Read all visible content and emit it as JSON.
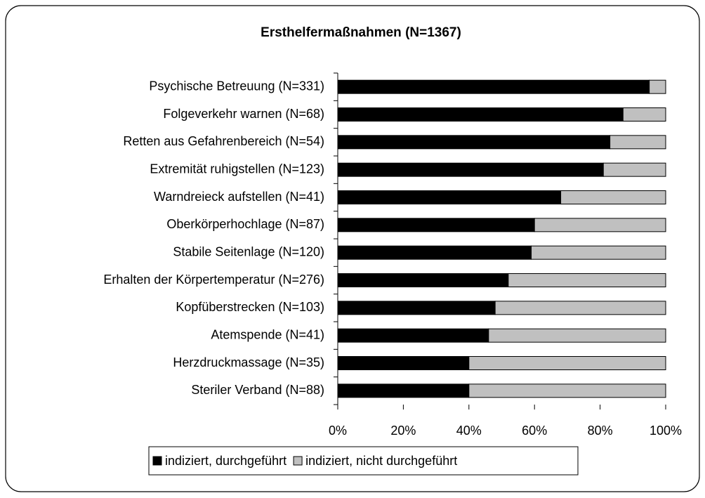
{
  "chart_data": {
    "type": "stacked-bar-horizontal",
    "title": "Ersthelfermaßnahmen (N=1367)",
    "categories": [
      "Psychische Betreuung (N=331)",
      "Folgeverkehr warnen (N=68)",
      "Retten aus Gefahrenbereich (N=54)",
      "Extremität ruhigstellen (N=123)",
      "Warndreieck aufstellen (N=41)",
      "Oberkörperhochlage (N=87)",
      "Stabile Seitenlage (N=120)",
      "Erhalten der Körpertemperatur (N=276)",
      "Kopfüberstrecken (N=103)",
      "Atemspende (N=41)",
      "Herzdruckmassage (N=35)",
      "Steriler Verband (N=88)"
    ],
    "series": [
      {
        "name": "indiziert, durchgeführt",
        "color": "#000000",
        "values": [
          95,
          87,
          83,
          81,
          68,
          60,
          59,
          52,
          48,
          46,
          40,
          40
        ]
      },
      {
        "name": "indiziert, nicht durchgeführt",
        "color": "#c0c0c0",
        "values": [
          5,
          13,
          17,
          19,
          32,
          40,
          41,
          48,
          52,
          54,
          60,
          60
        ]
      }
    ],
    "xlim": [
      0,
      100
    ],
    "xticks": [
      {
        "value": 0,
        "label": "0%"
      },
      {
        "value": 20,
        "label": "20%"
      },
      {
        "value": 40,
        "label": "40%"
      },
      {
        "value": 60,
        "label": "60%"
      },
      {
        "value": 80,
        "label": "80%"
      },
      {
        "value": 100,
        "label": "100%"
      }
    ],
    "legend": "bottom"
  }
}
